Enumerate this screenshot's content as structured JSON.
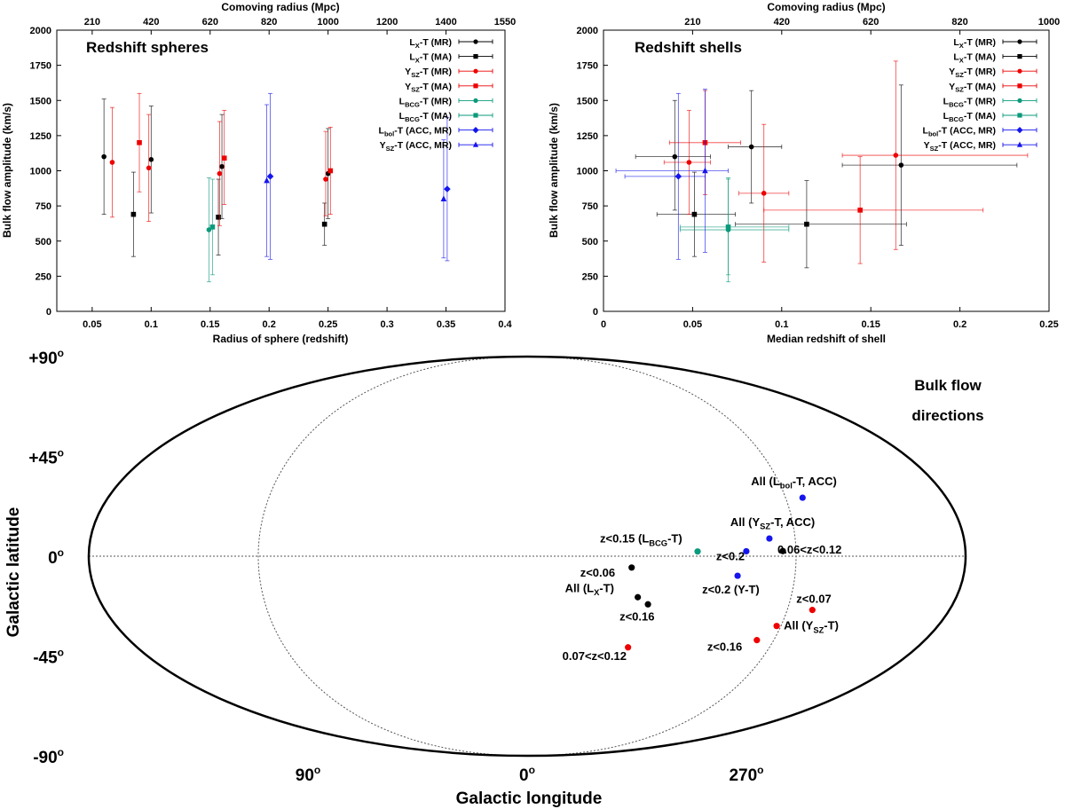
{
  "chart_data": [
    {
      "type": "scatter",
      "title": "Redshift spheres",
      "xlabel": "Radius of sphere (redshift)",
      "ylabel": "Bulk flow amplitude (km/s)",
      "top_axis_label": "Comoving radius (Mpc)",
      "xlim": [
        0.02,
        0.4
      ],
      "ylim": [
        0,
        2000
      ],
      "xticks": [
        0.05,
        0.1,
        0.15,
        0.2,
        0.25,
        0.3,
        0.35,
        0.4
      ],
      "xtick_labels": [
        "0.05",
        "0.1",
        "0.15",
        "0.2",
        "0.25",
        "0.3",
        "0.35",
        "0.4"
      ],
      "yticks": [
        0,
        250,
        500,
        750,
        1000,
        1250,
        1500,
        1750,
        2000
      ],
      "ytick_labels": [
        "0",
        "250",
        "500",
        "750",
        "1000",
        "1250",
        "1500",
        "1750",
        "2000"
      ],
      "top_ticks": [
        {
          "z": 0.05,
          "label": "210"
        },
        {
          "z": 0.1,
          "label": "420"
        },
        {
          "z": 0.15,
          "label": "620"
        },
        {
          "z": 0.2,
          "label": "820"
        },
        {
          "z": 0.25,
          "label": "1000"
        },
        {
          "z": 0.3,
          "label": "1200"
        },
        {
          "z": 0.35,
          "label": "1400"
        },
        {
          "z": 0.4,
          "label": "1550"
        }
      ],
      "legend_position": "top-right",
      "series": [
        {
          "name": "LX-T (MR)",
          "color": "#000000",
          "marker": "circle",
          "points": [
            {
              "x": 0.06,
              "y": 1100,
              "lo": 690,
              "hi": 1510
            },
            {
              "x": 0.1,
              "y": 1080,
              "lo": 700,
              "hi": 1460
            },
            {
              "x": 0.16,
              "y": 1030,
              "lo": 660,
              "hi": 1400
            },
            {
              "x": 0.25,
              "y": 980,
              "lo": 660,
              "hi": 1300
            }
          ]
        },
        {
          "name": "LX-T (MA)",
          "color": "#000000",
          "marker": "square",
          "points": [
            {
              "x": 0.085,
              "y": 690,
              "lo": 390,
              "hi": 990
            },
            {
              "x": 0.157,
              "y": 670,
              "lo": 400,
              "hi": 940
            },
            {
              "x": 0.247,
              "y": 620,
              "lo": 470,
              "hi": 770
            }
          ]
        },
        {
          "name": "YSZ-T (MR)",
          "color": "#ee0000",
          "marker": "circle",
          "points": [
            {
              "x": 0.067,
              "y": 1060,
              "lo": 670,
              "hi": 1450
            },
            {
              "x": 0.098,
              "y": 1020,
              "lo": 640,
              "hi": 1400
            },
            {
              "x": 0.158,
              "y": 980,
              "lo": 610,
              "hi": 1350
            },
            {
              "x": 0.248,
              "y": 940,
              "lo": 680,
              "hi": 1280
            }
          ]
        },
        {
          "name": "YSZ-T (MA)",
          "color": "#ee0000",
          "marker": "square",
          "points": [
            {
              "x": 0.09,
              "y": 1200,
              "lo": 850,
              "hi": 1550
            },
            {
              "x": 0.162,
              "y": 1090,
              "lo": 760,
              "hi": 1430
            },
            {
              "x": 0.252,
              "y": 1000,
              "lo": 690,
              "hi": 1310
            }
          ]
        },
        {
          "name": "LBCG-T (MR)",
          "color": "#0b9a7b",
          "marker": "circle",
          "points": [
            {
              "x": 0.149,
              "y": 580,
              "lo": 210,
              "hi": 950
            }
          ]
        },
        {
          "name": "LBCG-T (MA)",
          "color": "#0b9a7b",
          "marker": "square",
          "points": [
            {
              "x": 0.152,
              "y": 600,
              "lo": 260,
              "hi": 940
            }
          ]
        },
        {
          "name": "Lbol-T (ACC, MR)",
          "color": "#1515ee",
          "marker": "diamond",
          "points": [
            {
              "x": 0.201,
              "y": 960,
              "lo": 370,
              "hi": 1550
            },
            {
              "x": 0.351,
              "y": 870,
              "lo": 360,
              "hi": 1380
            }
          ]
        },
        {
          "name": "YSZ-T (ACC, MR)",
          "color": "#1515ee",
          "marker": "triangle",
          "points": [
            {
              "x": 0.198,
              "y": 930,
              "lo": 390,
              "hi": 1470
            },
            {
              "x": 0.348,
              "y": 800,
              "lo": 380,
              "hi": 1220
            }
          ]
        }
      ]
    },
    {
      "type": "scatter",
      "title": "Redshift shells",
      "xlabel": "Median redshift of shell",
      "ylabel": "Bulk flow amplitude (km/s)",
      "top_axis_label": "Comoving radius (Mpc)",
      "xlim": [
        0,
        0.25
      ],
      "ylim": [
        0,
        2000
      ],
      "xticks": [
        0,
        0.05,
        0.1,
        0.15,
        0.2,
        0.25
      ],
      "xtick_labels": [
        "0",
        "0.05",
        "0.1",
        "0.15",
        "0.2",
        "0.25"
      ],
      "yticks": [
        0,
        250,
        500,
        750,
        1000,
        1250,
        1500,
        1750,
        2000
      ],
      "ytick_labels": [
        "0",
        "250",
        "500",
        "750",
        "1000",
        "1250",
        "1500",
        "1750",
        "2000"
      ],
      "top_ticks": [
        {
          "z": 0.05,
          "label": "210"
        },
        {
          "z": 0.1,
          "label": "420"
        },
        {
          "z": 0.15,
          "label": "620"
        },
        {
          "z": 0.2,
          "label": "820"
        },
        {
          "z": 0.25,
          "label": "1000"
        }
      ],
      "legend_position": "top-right",
      "series": [
        {
          "name": "LX-T (MR)",
          "color": "#000000",
          "marker": "circle",
          "points": [
            {
              "x": 0.04,
              "y": 1100,
              "lo": 720,
              "hi": 1500,
              "xlo": 0.018,
              "xhi": 0.06
            },
            {
              "x": 0.083,
              "y": 1170,
              "lo": 770,
              "hi": 1570,
              "xlo": 0.07,
              "xhi": 0.1
            },
            {
              "x": 0.167,
              "y": 1040,
              "lo": 470,
              "hi": 1610,
              "xlo": 0.134,
              "xhi": 0.232
            }
          ]
        },
        {
          "name": "LX-T (MA)",
          "color": "#000000",
          "marker": "square",
          "points": [
            {
              "x": 0.051,
              "y": 690,
              "lo": 390,
              "hi": 990,
              "xlo": 0.03,
              "xhi": 0.074
            },
            {
              "x": 0.114,
              "y": 620,
              "lo": 310,
              "hi": 930,
              "xlo": 0.074,
              "xhi": 0.17
            }
          ]
        },
        {
          "name": "YSZ-T (MR)",
          "color": "#ee0000",
          "marker": "circle",
          "points": [
            {
              "x": 0.048,
              "y": 1060,
              "lo": 690,
              "hi": 1430,
              "xlo": 0.034,
              "xhi": 0.06
            },
            {
              "x": 0.09,
              "y": 840,
              "lo": 350,
              "hi": 1330,
              "xlo": 0.076,
              "xhi": 0.104
            },
            {
              "x": 0.164,
              "y": 1110,
              "lo": 440,
              "hi": 1780,
              "xlo": 0.134,
              "xhi": 0.238
            }
          ]
        },
        {
          "name": "YSZ-T (MA)",
          "color": "#ee0000",
          "marker": "square",
          "points": [
            {
              "x": 0.057,
              "y": 1200,
              "lo": 830,
              "hi": 1570,
              "xlo": 0.037,
              "xhi": 0.077
            },
            {
              "x": 0.144,
              "y": 720,
              "lo": 340,
              "hi": 1100,
              "xlo": 0.09,
              "xhi": 0.213
            }
          ]
        },
        {
          "name": "LBCG-T (MR)",
          "color": "#0b9a7b",
          "marker": "circle",
          "points": [
            {
              "x": 0.07,
              "y": 580,
              "lo": 210,
              "hi": 950,
              "xlo": 0.043,
              "xhi": 0.104
            }
          ]
        },
        {
          "name": "LBCG-T (MA)",
          "color": "#0b9a7b",
          "marker": "square",
          "points": [
            {
              "x": 0.07,
              "y": 600,
              "lo": 260,
              "hi": 940,
              "xlo": 0.043,
              "xhi": 0.104
            }
          ]
        },
        {
          "name": "Lbol-T (ACC, MR)",
          "color": "#1515ee",
          "marker": "diamond",
          "points": [
            {
              "x": 0.042,
              "y": 960,
              "lo": 370,
              "hi": 1550,
              "xlo": 0.012,
              "xhi": 0.057
            }
          ]
        },
        {
          "name": "YSZ-T (ACC, MR)",
          "color": "#1515ee",
          "marker": "triangle",
          "points": [
            {
              "x": 0.057,
              "y": 1000,
              "lo": 420,
              "hi": 1580,
              "xlo": 0.007,
              "xhi": 0.07
            }
          ]
        }
      ]
    },
    {
      "type": "scatter",
      "projection": "aitoff",
      "title": "Bulk flow directions",
      "xlabel": "Galactic longitude",
      "ylabel": "Galactic latitude",
      "lon_ticks": [
        {
          "lon": 90,
          "label": "90"
        },
        {
          "lon": 0,
          "label": "0"
        },
        {
          "lon": 270,
          "label": "270"
        }
      ],
      "lat_ticks": [
        {
          "lat": 90,
          "label": "+90"
        },
        {
          "lat": 45,
          "label": "+45"
        },
        {
          "lat": 0,
          "label": "0"
        },
        {
          "lat": -45,
          "label": "-45"
        },
        {
          "lat": -90,
          "label": "-90"
        }
      ],
      "points": [
        {
          "name": "All (Lbol-T, ACC)",
          "color": "#1515ee",
          "lon": 240,
          "lat": 22
        },
        {
          "name": "All (YSZ-T, ACC)",
          "color": "#1515ee",
          "lon": 260,
          "lat": 7
        },
        {
          "name": "z<0.2",
          "color": "#1515ee",
          "lon": 270,
          "lat": 2
        },
        {
          "name": "z<0.2 (Y-T)",
          "color": "#1515ee",
          "lon": 273,
          "lat": -8
        },
        {
          "name": "0.06<z<0.12",
          "color": "#000000",
          "lon": 255,
          "lat": 2
        },
        {
          "name": "z<0.15 (LBCG-T)",
          "color": "#0b9a7b",
          "lon": 290,
          "lat": 2
        },
        {
          "name": "z<0.06",
          "color": "#000000",
          "lon": 317,
          "lat": -5
        },
        {
          "name": "All (LX-T)",
          "color": "#000000",
          "lon": 313,
          "lat": -18
        },
        {
          "name": "z<0.16",
          "color": "#000000",
          "lon": 308,
          "lat": -21
        },
        {
          "name": "z<0.07",
          "color": "#ee0000",
          "lon": 237,
          "lat": -20
        },
        {
          "name": "All (YSZ-T)",
          "color": "#ee0000",
          "lon": 248,
          "lat": -27
        },
        {
          "name": "z<0.16",
          "color": "#ee0000",
          "lon": 252,
          "lat": -33
        },
        {
          "name": "0.07<z<0.12",
          "color": "#ee0000",
          "lon": 310,
          "lat": -40
        }
      ]
    }
  ]
}
